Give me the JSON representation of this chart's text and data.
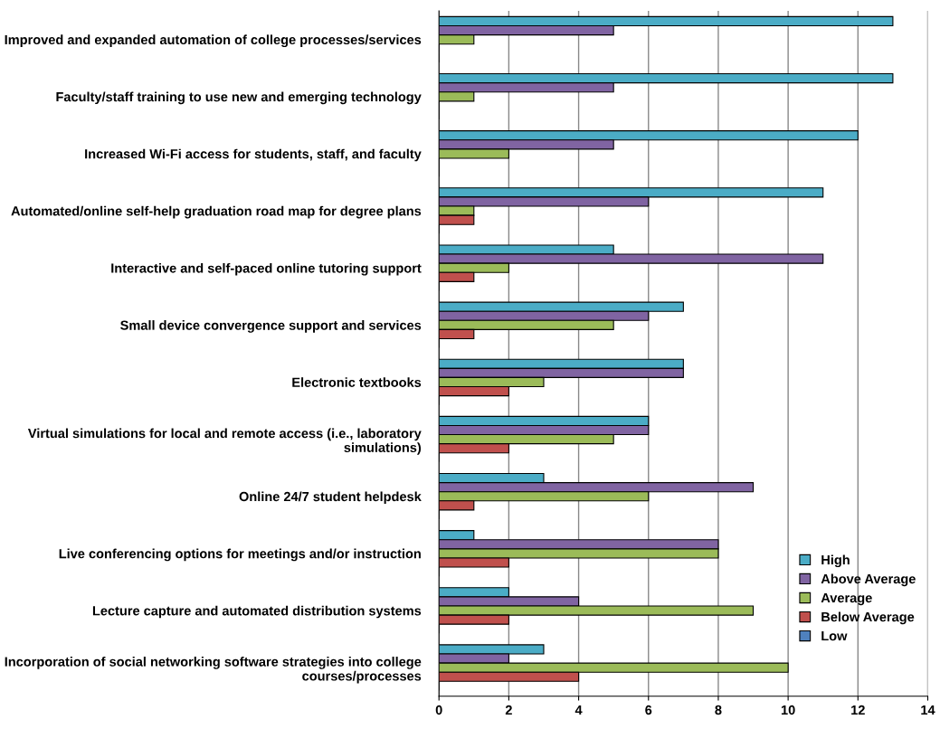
{
  "chart_data": {
    "type": "bar",
    "orientation": "horizontal",
    "categories": [
      "Improved and expanded automation of college processes/services",
      "Faculty/staff training to use new and emerging technology",
      "Increased Wi-Fi access for students, staff, and faculty",
      "Automated/online self-help graduation road map for degree plans",
      "Interactive and self-paced online tutoring support",
      "Small device convergence support and services",
      "Electronic textbooks",
      "Virtual simulations for local and remote access (i.e., laboratory simulations)",
      "Online 24/7 student helpdesk",
      "Live conferencing options for meetings and/or instruction",
      "Lecture capture and automated distribution systems",
      "Incorporation of social networking software strategies into college courses/processes"
    ],
    "series": [
      {
        "name": "High",
        "color": "#4bacc6",
        "values": [
          13,
          13,
          12,
          11,
          5,
          7,
          7,
          6,
          3,
          1,
          2,
          3
        ]
      },
      {
        "name": "Above Average",
        "color": "#8064a2",
        "values": [
          5,
          5,
          5,
          6,
          11,
          6,
          7,
          6,
          9,
          8,
          4,
          2
        ]
      },
      {
        "name": "Average",
        "color": "#9bbb59",
        "values": [
          1,
          1,
          2,
          1,
          2,
          5,
          3,
          5,
          6,
          8,
          9,
          10
        ]
      },
      {
        "name": "Below Average",
        "color": "#c0504d",
        "values": [
          0,
          0,
          0,
          1,
          1,
          1,
          2,
          2,
          1,
          2,
          2,
          4
        ]
      },
      {
        "name": "Low",
        "color": "#4f81bd",
        "values": [
          0,
          0,
          0,
          0,
          0,
          0,
          0,
          0,
          0,
          0,
          0,
          0
        ]
      }
    ],
    "xlim": [
      0,
      14
    ],
    "xticks": [
      0,
      2,
      4,
      6,
      8,
      10,
      12,
      14
    ],
    "grid": "x",
    "legend": "bottom right"
  }
}
